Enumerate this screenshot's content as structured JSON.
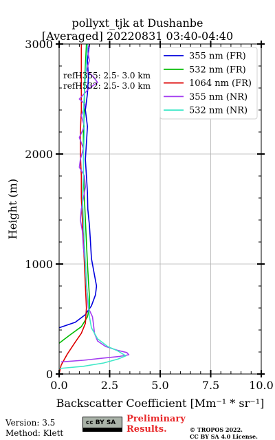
{
  "title_line1": "pollyxt_tjk at Dushanbe",
  "title_line2": "[Averaged] 20220831 03:40-04:40",
  "ref_lines": [
    "refH355:  2.5- 3.0 km",
    "refH532:  2.5- 3.0 km"
  ],
  "footer": {
    "version": "Version: 3.5",
    "method": "Method: Klett",
    "preliminary_line1": "Preliminary",
    "preliminary_line2": "Results.",
    "copyright_line1": "© TROPOS 2022.",
    "copyright_line2": "CC BY SA 4.0 License.",
    "license_badge": "cc BY SA"
  },
  "chart_data": {
    "type": "line",
    "xlabel": "Backscatter Coefficient [Mm⁻¹ * sr⁻¹]",
    "ylabel": "Height (m)",
    "xlim": [
      0,
      10
    ],
    "ylim": [
      0,
      3000
    ],
    "x_ticks": [
      0,
      2.5,
      5,
      7.5,
      10
    ],
    "x_tick_labels": [
      "0.0",
      "2.5",
      "5.0",
      "7.5",
      "10.0"
    ],
    "y_ticks": [
      0,
      1000,
      2000,
      3000
    ],
    "y_tick_labels": [
      "0",
      "1000",
      "2000",
      "3000"
    ],
    "grid": true,
    "legend_position": "top-right",
    "series": [
      {
        "name": "355 nm (FR)",
        "color": "#0000dd",
        "points": [
          [
            0.0,
            420
          ],
          [
            0.8,
            470
          ],
          [
            1.3,
            540
          ],
          [
            1.6,
            620
          ],
          [
            1.8,
            720
          ],
          [
            1.85,
            800
          ],
          [
            1.75,
            900
          ],
          [
            1.6,
            1050
          ],
          [
            1.55,
            1200
          ],
          [
            1.5,
            1350
          ],
          [
            1.42,
            1500
          ],
          [
            1.4,
            1650
          ],
          [
            1.35,
            1800
          ],
          [
            1.3,
            1950
          ],
          [
            1.35,
            2100
          ],
          [
            1.4,
            2250
          ],
          [
            1.3,
            2400
          ],
          [
            1.4,
            2550
          ],
          [
            1.45,
            2700
          ],
          [
            1.4,
            2850
          ],
          [
            1.5,
            3000
          ]
        ]
      },
      {
        "name": "532 nm (FR)",
        "color": "#00bb00",
        "points": [
          [
            0.0,
            280
          ],
          [
            0.5,
            350
          ],
          [
            1.1,
            430
          ],
          [
            1.4,
            520
          ],
          [
            1.5,
            600
          ],
          [
            1.5,
            700
          ],
          [
            1.45,
            850
          ],
          [
            1.4,
            1000
          ],
          [
            1.35,
            1200
          ],
          [
            1.3,
            1400
          ],
          [
            1.25,
            1600
          ],
          [
            1.2,
            1800
          ],
          [
            1.2,
            2000
          ],
          [
            1.2,
            2200
          ],
          [
            1.25,
            2400
          ],
          [
            1.25,
            2600
          ],
          [
            1.3,
            2800
          ],
          [
            1.35,
            3000
          ]
        ]
      },
      {
        "name": "1064 nm (FR)",
        "color": "#dd0000",
        "points": [
          [
            0.0,
            0
          ],
          [
            0.1,
            80
          ],
          [
            0.4,
            180
          ],
          [
            0.8,
            290
          ],
          [
            1.1,
            370
          ],
          [
            1.3,
            460
          ],
          [
            1.35,
            600
          ],
          [
            1.3,
            800
          ],
          [
            1.25,
            1000
          ],
          [
            1.2,
            1200
          ],
          [
            1.15,
            1400
          ],
          [
            1.1,
            1600
          ],
          [
            1.1,
            1800
          ],
          [
            1.05,
            2000
          ],
          [
            1.05,
            2200
          ],
          [
            1.1,
            2400
          ],
          [
            1.1,
            2600
          ],
          [
            1.1,
            2800
          ],
          [
            1.1,
            3000
          ]
        ]
      },
      {
        "name": "355 nm (NR)",
        "color": "#a33cf0",
        "points": [
          [
            0.1,
            110
          ],
          [
            1.2,
            125
          ],
          [
            2.2,
            145
          ],
          [
            3.0,
            160
          ],
          [
            3.45,
            175
          ],
          [
            3.35,
            195
          ],
          [
            2.9,
            215
          ],
          [
            2.3,
            250
          ],
          [
            1.9,
            300
          ],
          [
            1.75,
            370
          ],
          [
            1.7,
            450
          ],
          [
            1.65,
            520
          ],
          [
            1.45,
            600
          ],
          [
            1.4,
            700
          ],
          [
            1.35,
            850
          ],
          [
            1.3,
            1000
          ],
          [
            1.2,
            1150
          ],
          [
            1.15,
            1300
          ],
          [
            1.05,
            1400
          ],
          [
            1.1,
            1500
          ],
          [
            1.2,
            1600
          ],
          [
            1.3,
            1700
          ],
          [
            1.25,
            1800
          ],
          [
            1.0,
            1880
          ],
          [
            1.05,
            1950
          ],
          [
            1.2,
            2050
          ],
          [
            1.0,
            2150
          ],
          [
            1.25,
            2250
          ],
          [
            1.1,
            2350
          ],
          [
            1.3,
            2450
          ],
          [
            1.0,
            2500
          ],
          [
            1.25,
            2550
          ],
          [
            1.5,
            2600
          ],
          [
            1.9,
            2650
          ],
          [
            1.7,
            2700
          ],
          [
            1.35,
            2760
          ],
          [
            1.5,
            2850
          ],
          [
            1.4,
            2950
          ],
          [
            1.5,
            3000
          ]
        ]
      },
      {
        "name": "532 nm (NR)",
        "color": "#40e8c8",
        "points": [
          [
            0.0,
            50
          ],
          [
            1.2,
            70
          ],
          [
            2.2,
            100
          ],
          [
            2.9,
            135
          ],
          [
            3.3,
            165
          ],
          [
            2.9,
            210
          ],
          [
            2.4,
            250
          ],
          [
            1.9,
            320
          ],
          [
            1.6,
            420
          ],
          [
            1.5,
            520
          ],
          [
            1.45,
            650
          ],
          [
            1.35,
            800
          ],
          [
            1.3,
            1000
          ],
          [
            1.25,
            1200
          ],
          [
            1.2,
            1400
          ],
          [
            1.15,
            1600
          ],
          [
            1.2,
            1800
          ],
          [
            1.2,
            2000
          ],
          [
            1.25,
            2200
          ],
          [
            1.2,
            2400
          ],
          [
            1.25,
            2550
          ],
          [
            1.3,
            2700
          ],
          [
            1.35,
            2850
          ],
          [
            1.4,
            3000
          ]
        ]
      }
    ]
  }
}
